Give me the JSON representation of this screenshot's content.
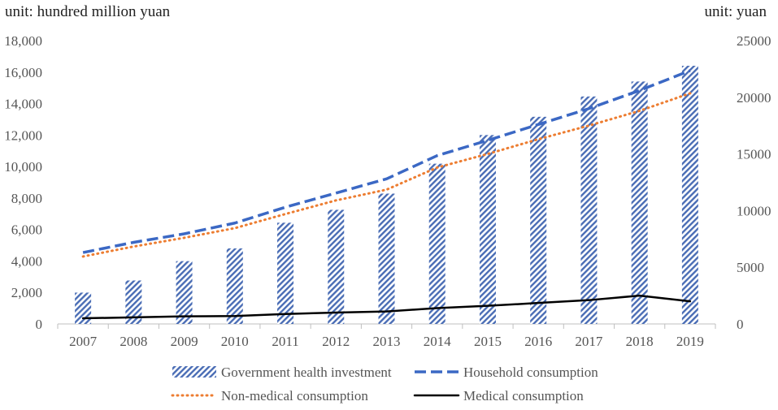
{
  "chart_data": {
    "type": "bar+line",
    "left_unit": "unit: hundred million yuan",
    "right_unit": "unit: yuan",
    "categories": [
      "2007",
      "2008",
      "2009",
      "2010",
      "2011",
      "2012",
      "2013",
      "2014",
      "2015",
      "2016",
      "2017",
      "2018",
      "2019"
    ],
    "left_axis": {
      "min": 0,
      "max": 18000,
      "step": 2000,
      "ticks": [
        "0",
        "2,000",
        "4,000",
        "6,000",
        "8,000",
        "10,000",
        "12,000",
        "14,000",
        "16,000",
        "18,000"
      ]
    },
    "right_axis": {
      "min": 0,
      "max": 25000,
      "step": 5000,
      "ticks": [
        "0",
        "5000",
        "10000",
        "15000",
        "20000",
        "25000"
      ]
    },
    "bars": {
      "name": "Government health investment",
      "axis": "left",
      "color": "#4a6db5",
      "values": [
        1990,
        2760,
        3990,
        4800,
        6430,
        7250,
        8280,
        10180,
        12000,
        13160,
        14450,
        15400,
        16400
      ]
    },
    "series": [
      {
        "name": "Household consumption",
        "axis": "right",
        "style": "dashed",
        "color": "#3b68c4",
        "values": [
          6300,
          7200,
          7950,
          8900,
          10300,
          11550,
          12800,
          14850,
          16200,
          17600,
          19000,
          20600,
          22350
        ]
      },
      {
        "name": "Non-medical consumption",
        "axis": "right",
        "style": "dotted",
        "color": "#ed7d31",
        "values": [
          5950,
          6830,
          7600,
          8450,
          9700,
          10900,
          11850,
          13800,
          15000,
          16300,
          17500,
          18800,
          20350
        ]
      },
      {
        "name": "Medical consumption",
        "axis": "right",
        "style": "solid",
        "color": "#000000",
        "values": [
          500,
          580,
          670,
          700,
          880,
          1000,
          1100,
          1400,
          1600,
          1850,
          2100,
          2500,
          2000
        ]
      }
    ],
    "legend": {
      "placement": "bottom",
      "rows": [
        [
          "Government health investment",
          "Household consumption"
        ],
        [
          "Non-medical consumption",
          "Medical consumption"
        ]
      ]
    },
    "grid": false
  }
}
